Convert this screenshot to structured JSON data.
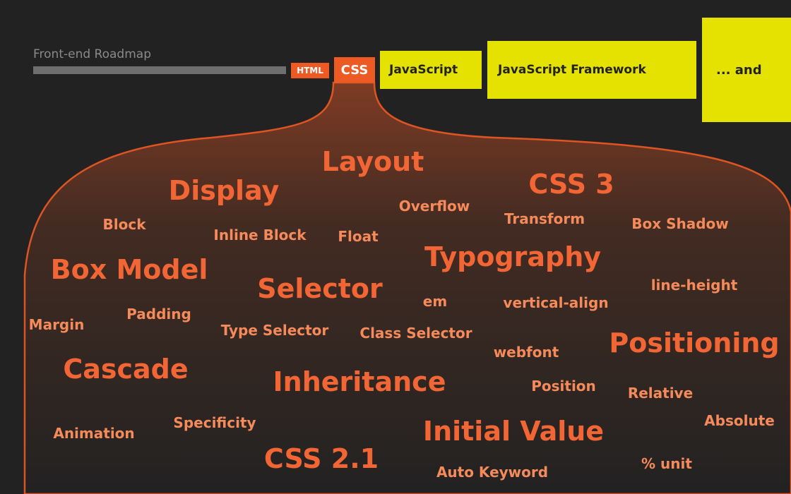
{
  "header": {
    "caption": "Front-end Roadmap",
    "steps": [
      "HTML",
      "CSS",
      "JavaScript",
      "JavaScript Framework",
      "... and"
    ]
  },
  "colors": {
    "background": "#222222",
    "accent": "#ee5a24",
    "highlight": "#e5e100",
    "topic_text": "#f26535",
    "subtopic_text": "#f58a5a",
    "progress_track": "#6e6e6e",
    "caption_text": "#8a8a8a"
  },
  "topics": [
    "Layout",
    "Display",
    "CSS 3",
    "Overflow",
    "Block",
    "Inline Block",
    "Float",
    "Transform",
    "Box Shadow",
    "Box Model",
    "Typography",
    "Selector",
    "line-height",
    "em",
    "vertical-align",
    "Padding",
    "Margin",
    "Type Selector",
    "Class Selector",
    "webfont",
    "Positioning",
    "Cascade",
    "Inheritance",
    "Position",
    "Relative",
    "Absolute",
    "Animation",
    "Specificity",
    "Initial Value",
    "CSS 2.1",
    "% unit",
    "Auto Keyword"
  ]
}
